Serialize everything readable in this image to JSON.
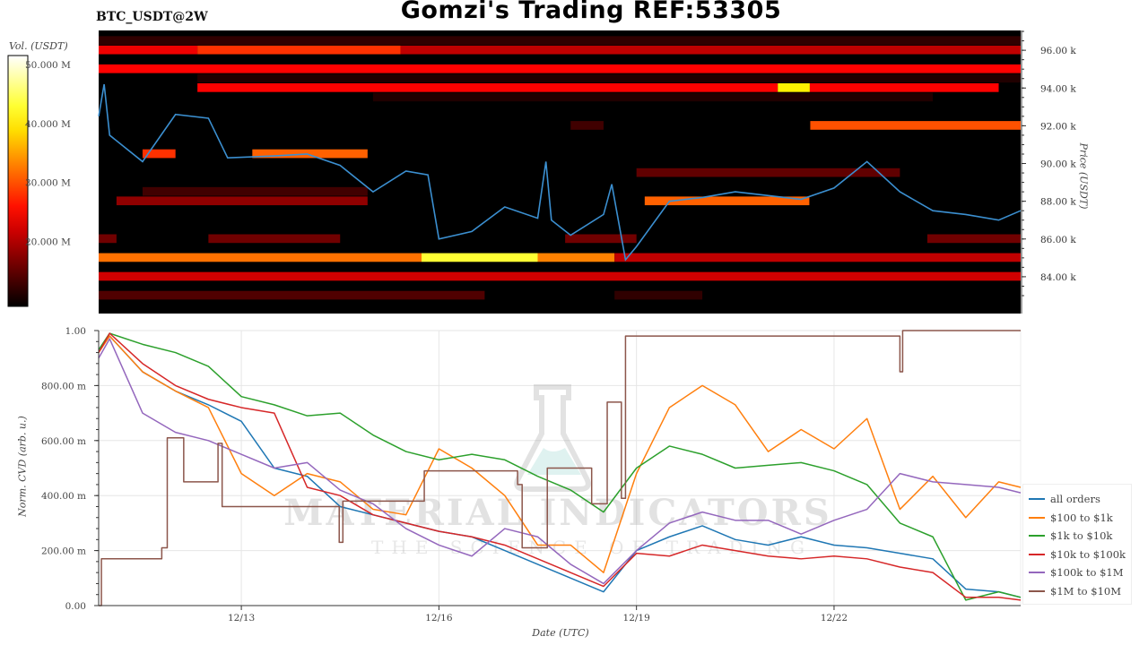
{
  "header": {
    "title": "Gomzi's Trading REF:53305",
    "symbol": "BTC_USDT@2W"
  },
  "watermark": {
    "brand": "MATERIAL INDICATORS",
    "tagline": "THE SCIENCE OF TRADING",
    "icon": "flask-icon"
  },
  "chart_data": [
    {
      "type": "heatmap",
      "title": "BTC_USDT@2W",
      "ylabel": "Price (USDT)",
      "xlim": [
        "12/10 20:00",
        "12/24 20:00"
      ],
      "ylim": [
        82.05,
        97.05
      ],
      "y_unit": "k",
      "yticks": [
        {
          "value": 84,
          "label": "84.00 k"
        },
        {
          "value": 86,
          "label": "86.00 k"
        },
        {
          "value": 88,
          "label": "88.00 k"
        },
        {
          "value": 90,
          "label": "90.00 k"
        },
        {
          "value": 92,
          "label": "92.00 k"
        },
        {
          "value": 94,
          "label": "94.00 k"
        },
        {
          "value": 96,
          "label": "96.00 k"
        }
      ],
      "colorbar": {
        "label": "Vol. (USDT)",
        "colormap": "hot",
        "range": [
          9,
          51.5
        ],
        "ticks": [
          {
            "value": 20,
            "label": "20.000 M"
          },
          {
            "value": 30,
            "label": "30.000 M"
          },
          {
            "value": 40,
            "label": "40.000 M"
          },
          {
            "value": 50,
            "label": "50.000 M"
          }
        ]
      },
      "bands": [
        {
          "price": 96.5,
          "segments": [
            [
              "12/10 20:00",
              "12/24 20:00",
              12
            ]
          ]
        },
        {
          "price": 96.0,
          "segments": [
            [
              "12/10 20:00",
              "12/12 08:00",
              24
            ],
            [
              "12/12 08:00",
              "12/15 10:00",
              28
            ],
            [
              "12/15 10:00",
              "12/24 20:00",
              21
            ]
          ]
        },
        {
          "price": 95.5,
          "segments": [
            [
              "12/10 20:00",
              "12/24 20:00",
              9
            ]
          ]
        },
        {
          "price": 95.0,
          "segments": [
            [
              "12/10 20:00",
              "12/24 20:00",
              25
            ]
          ]
        },
        {
          "price": 94.5,
          "segments": [
            [
              "12/12 08:00",
              "12/24 20:00",
              11
            ]
          ]
        },
        {
          "price": 94.0,
          "segments": [
            [
              "12/12 08:00",
              "12/21 03:30",
              25
            ],
            [
              "12/21 03:30",
              "12/21 15:10",
              40
            ],
            [
              "12/21 15:10",
              "12/24 12:00",
              25
            ]
          ]
        },
        {
          "price": 93.5,
          "segments": [
            [
              "12/15 00:00",
              "12/23 12:00",
              11
            ]
          ]
        },
        {
          "price": 92.0,
          "segments": [
            [
              "12/18 00:00",
              "12/18 12:00",
              13
            ],
            [
              "12/21 15:20",
              "12/24 20:00",
              30
            ]
          ]
        },
        {
          "price": 90.5,
          "segments": [
            [
              "12/11 12:00",
              "12/12 00:00",
              28
            ],
            [
              "12/13 04:00",
              "12/14 22:00",
              31
            ]
          ]
        },
        {
          "price": 89.5,
          "segments": [
            [
              "12/19 00:00",
              "12/23 00:00",
              15
            ]
          ]
        },
        {
          "price": 88.5,
          "segments": [
            [
              "12/11 12:00",
              "12/14 22:00",
              13
            ]
          ]
        },
        {
          "price": 88.0,
          "segments": [
            [
              "12/11 02:30",
              "12/14 22:00",
              18
            ],
            [
              "12/19 03:00",
              "12/21 15:00",
              31
            ]
          ]
        },
        {
          "price": 86.0,
          "segments": [
            [
              "12/10 20:00",
              "12/11 02:30",
              16
            ],
            [
              "12/12 12:00",
              "12/14 12:00",
              16
            ],
            [
              "12/17 22:00",
              "12/19 00:00",
              16
            ],
            [
              "12/23 10:00",
              "12/24 20:00",
              16
            ]
          ]
        },
        {
          "price": 85.0,
          "segments": [
            [
              "12/10 20:00",
              "12/15 17:40",
              32
            ],
            [
              "12/15 17:40",
              "12/17 12:00",
              43
            ],
            [
              "12/17 12:00",
              "12/18 16:00",
              33
            ],
            [
              "12/18 16:00",
              "12/24 20:00",
              21
            ]
          ]
        },
        {
          "price": 84.0,
          "segments": [
            [
              "12/10 20:00",
              "12/24 20:00",
              22
            ]
          ]
        },
        {
          "price": 83.0,
          "segments": [
            [
              "12/10 20:00",
              "12/16 16:40",
              14
            ],
            [
              "12/18 16:00",
              "12/20 00:00",
              12
            ]
          ]
        }
      ],
      "price_line": {
        "color": "#3b8fd0",
        "points": [
          [
            "12/10 20:00",
            92.5
          ],
          [
            "12/10 22:00",
            94.2
          ],
          [
            "12/11 00:00",
            91.5
          ],
          [
            "12/11 12:00",
            90.1
          ],
          [
            "12/12 00:00",
            92.6
          ],
          [
            "12/12 12:00",
            92.4
          ],
          [
            "12/12 19:00",
            90.3
          ],
          [
            "12/13 12:00",
            90.4
          ],
          [
            "12/14 00:00",
            90.5
          ],
          [
            "12/14 12:00",
            89.9
          ],
          [
            "12/15 00:00",
            88.5
          ],
          [
            "12/15 12:00",
            89.6
          ],
          [
            "12/15 20:00",
            89.4
          ],
          [
            "12/16 00:00",
            86.0
          ],
          [
            "12/16 12:00",
            86.4
          ],
          [
            "12/17 00:00",
            87.7
          ],
          [
            "12/17 12:00",
            87.1
          ],
          [
            "12/17 15:00",
            90.1
          ],
          [
            "12/17 17:00",
            87.0
          ],
          [
            "12/18 00:00",
            86.2
          ],
          [
            "12/18 12:00",
            87.3
          ],
          [
            "12/18 15:00",
            88.9
          ],
          [
            "12/18 20:00",
            84.9
          ],
          [
            "12/19 00:00",
            85.6
          ],
          [
            "12/19 12:00",
            88.0
          ],
          [
            "12/20 00:00",
            88.2
          ],
          [
            "12/20 12:00",
            88.5
          ],
          [
            "12/21 00:00",
            88.3
          ],
          [
            "12/21 12:00",
            88.1
          ],
          [
            "12/22 00:00",
            88.7
          ],
          [
            "12/22 12:00",
            90.1
          ],
          [
            "12/23 00:00",
            88.5
          ],
          [
            "12/23 12:00",
            87.5
          ],
          [
            "12/24 00:00",
            87.3
          ],
          [
            "12/24 12:00",
            87.0
          ],
          [
            "12/24 20:00",
            87.5
          ]
        ]
      }
    },
    {
      "type": "line",
      "xlabel": "Date (UTC)",
      "ylabel": "Norm. CVD (arb. u.)",
      "xlim": [
        "12/10 20:00",
        "12/24 20:00"
      ],
      "ylim": [
        0,
        1
      ],
      "grid": true,
      "legend": "right",
      "xticks": [
        {
          "value": "12/13 00:00",
          "label": "12/13"
        },
        {
          "value": "12/16 00:00",
          "label": "12/16"
        },
        {
          "value": "12/19 00:00",
          "label": "12/19"
        },
        {
          "value": "12/22 00:00",
          "label": "12/22"
        }
      ],
      "yticks": [
        {
          "value": 0,
          "label": "0.00"
        },
        {
          "value": 0.2,
          "label": "200.00 m"
        },
        {
          "value": 0.4,
          "label": "400.00 m"
        },
        {
          "value": 0.6,
          "label": "600.00 m"
        },
        {
          "value": 0.8,
          "label": "800.00 m"
        },
        {
          "value": 1,
          "label": "1.00"
        }
      ],
      "x": [
        "12/10 20:00",
        "12/11 00:00",
        "12/11 12:00",
        "12/12 00:00",
        "12/12 12:00",
        "12/13 00:00",
        "12/13 12:00",
        "12/14 00:00",
        "12/14 12:00",
        "12/15 00:00",
        "12/15 12:00",
        "12/16 00:00",
        "12/16 12:00",
        "12/17 00:00",
        "12/17 12:00",
        "12/18 00:00",
        "12/18 12:00",
        "12/19 00:00",
        "12/19 12:00",
        "12/20 00:00",
        "12/20 12:00",
        "12/21 00:00",
        "12/21 12:00",
        "12/22 00:00",
        "12/22 12:00",
        "12/23 00:00",
        "12/23 12:00",
        "12/24 00:00",
        "12/24 12:00",
        "12/24 20:00"
      ],
      "series": [
        {
          "name": "all orders",
          "color": "#1f77b4",
          "values": [
            0.93,
            0.98,
            0.85,
            0.78,
            0.73,
            0.67,
            0.5,
            0.47,
            0.36,
            0.33,
            0.3,
            0.27,
            0.25,
            0.2,
            0.15,
            0.1,
            0.05,
            0.2,
            0.25,
            0.29,
            0.24,
            0.22,
            0.25,
            0.22,
            0.21,
            0.19,
            0.17,
            0.06,
            0.05,
            0.03
          ]
        },
        {
          "name": "$100 to $1k",
          "color": "#ff7f0e",
          "values": [
            0.92,
            0.98,
            0.85,
            0.78,
            0.72,
            0.48,
            0.4,
            0.48,
            0.45,
            0.35,
            0.33,
            0.57,
            0.5,
            0.4,
            0.22,
            0.22,
            0.12,
            0.48,
            0.72,
            0.8,
            0.73,
            0.56,
            0.64,
            0.57,
            0.68,
            0.35,
            0.47,
            0.32,
            0.45,
            0.43
          ]
        },
        {
          "name": "$1k to $10k",
          "color": "#2ca02c",
          "values": [
            0.93,
            0.99,
            0.95,
            0.92,
            0.87,
            0.76,
            0.73,
            0.69,
            0.7,
            0.62,
            0.56,
            0.53,
            0.55,
            0.53,
            0.47,
            0.42,
            0.34,
            0.5,
            0.58,
            0.55,
            0.5,
            0.51,
            0.52,
            0.49,
            0.44,
            0.3,
            0.25,
            0.02,
            0.05,
            0.03
          ]
        },
        {
          "name": "$10k to $100k",
          "color": "#d62728",
          "values": [
            0.92,
            0.99,
            0.88,
            0.8,
            0.75,
            0.72,
            0.7,
            0.43,
            0.4,
            0.33,
            0.3,
            0.27,
            0.25,
            0.22,
            0.17,
            0.12,
            0.07,
            0.19,
            0.18,
            0.22,
            0.2,
            0.18,
            0.17,
            0.18,
            0.17,
            0.14,
            0.12,
            0.03,
            0.03,
            0.02
          ]
        },
        {
          "name": "$100k to $1M",
          "color": "#9467bd",
          "values": [
            0.9,
            0.97,
            0.7,
            0.63,
            0.6,
            0.55,
            0.5,
            0.52,
            0.42,
            0.37,
            0.28,
            0.22,
            0.18,
            0.28,
            0.25,
            0.15,
            0.08,
            0.2,
            0.3,
            0.34,
            0.31,
            0.31,
            0.26,
            0.31,
            0.35,
            0.48,
            0.45,
            0.44,
            0.43,
            0.41
          ]
        },
        {
          "name": "$1M to $10M",
          "color": "#8c564b",
          "step": true,
          "points": [
            [
              "12/10 20:00",
              0
            ],
            [
              "12/10 21:00",
              0.17
            ],
            [
              "12/11 19:00",
              0.21
            ],
            [
              "12/11 21:00",
              0.61
            ],
            [
              "12/12 03:00",
              0.45
            ],
            [
              "12/12 15:30",
              0.59
            ],
            [
              "12/12 17:00",
              0.36
            ],
            [
              "12/14 11:40",
              0.23
            ],
            [
              "12/14 13:00",
              0.38
            ],
            [
              "12/15 18:40",
              0.49
            ],
            [
              "12/17 04:40",
              0.44
            ],
            [
              "12/17 06:20",
              0.21
            ],
            [
              "12/17 15:30",
              0.5
            ],
            [
              "12/18 07:40",
              0.37
            ],
            [
              "12/18 13:20",
              0.74
            ],
            [
              "12/18 18:30",
              0.39
            ],
            [
              "12/18 20:00",
              0.98
            ],
            [
              "12/23 00:00",
              0.85
            ],
            [
              "12/23 01:00",
              1.0
            ],
            [
              "12/24 20:00",
              1.0
            ]
          ]
        }
      ]
    }
  ]
}
